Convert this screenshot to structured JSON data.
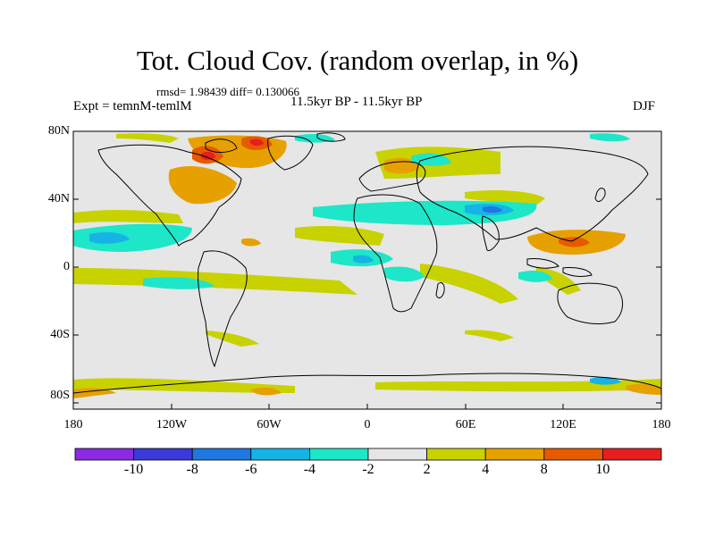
{
  "title": "Tot. Cloud Cov. (random overlap, in %)",
  "stats": "rmsd= 1.98439 diff= 0.130066",
  "experiment": "Expt = temnM-temlM",
  "period": "11.5kyr BP - 11.5kyr BP",
  "season": "DJF",
  "map": {
    "y_ticks": [
      "80N",
      "40N",
      "0",
      "40S",
      "80S"
    ],
    "x_ticks": [
      "180",
      "120W",
      "60W",
      "0",
      "60E",
      "120E",
      "180"
    ]
  },
  "colorbar": {
    "labels": [
      "-10",
      "-8",
      "-6",
      "-4",
      "-2",
      "2",
      "4",
      "8",
      "10"
    ],
    "colors": [
      "#8a2be2",
      "#3a3ad8",
      "#1e78e0",
      "#16b4e6",
      "#1ee6c8",
      "#e6e6e6",
      "#c8d200",
      "#e6a000",
      "#e65a00",
      "#e61e1e"
    ]
  }
}
